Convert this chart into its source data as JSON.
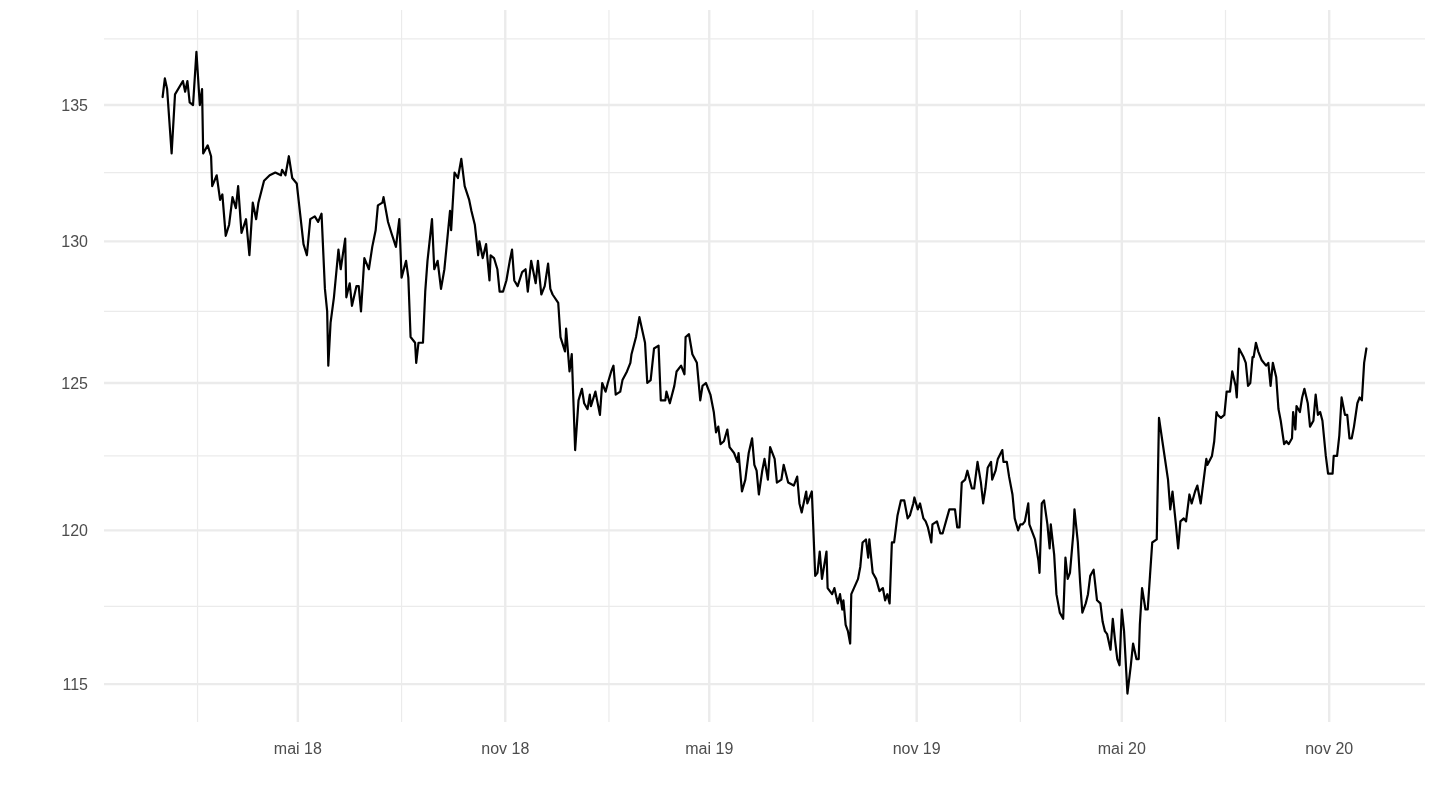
{
  "chart_data": {
    "type": "line",
    "log": true,
    "grid": true,
    "xlim": [
      "2017-11-10",
      "2021-01-25"
    ],
    "ylim": [
      113.8,
      138.6
    ],
    "xticks": [
      {
        "value": "2018-02-01",
        "label": null
      },
      {
        "value": "2018-05-01",
        "label": "mai 18"
      },
      {
        "value": "2018-08-01",
        "label": null
      },
      {
        "value": "2018-11-01",
        "label": "nov 18"
      },
      {
        "value": "2019-02-01",
        "label": null
      },
      {
        "value": "2019-05-01",
        "label": "mai 19"
      },
      {
        "value": "2019-08-01",
        "label": null
      },
      {
        "value": "2019-11-01",
        "label": "nov 19"
      },
      {
        "value": "2020-02-01",
        "label": null
      },
      {
        "value": "2020-05-01",
        "label": "mai 20"
      },
      {
        "value": "2020-08-01",
        "label": null
      },
      {
        "value": "2020-11-01",
        "label": "nov 20"
      }
    ],
    "yticks": [
      115,
      {
        "value": 117.5,
        "label": null
      },
      120,
      {
        "value": 122.5,
        "label": null
      },
      125,
      {
        "value": 127.5,
        "label": null
      },
      130,
      {
        "value": 132.5,
        "label": null
      },
      135,
      {
        "value": 137.5,
        "label": null
      }
    ],
    "series": [
      {
        "color": "#000000",
        "x": [
          "2018-01-01",
          "2018-01-03",
          "2018-01-05",
          "2018-01-09",
          "2018-01-12",
          "2018-01-19",
          "2018-01-21",
          "2018-01-23",
          "2018-01-25",
          "2018-01-28",
          "2018-01-31",
          "2018-02-03",
          "2018-02-05",
          "2018-02-06",
          "2018-02-10",
          "2018-02-13",
          "2018-02-14",
          "2018-02-18",
          "2018-02-21",
          "2018-02-23",
          "2018-02-26",
          "2018-03-01",
          "2018-03-04",
          "2018-03-07",
          "2018-03-09",
          "2018-03-12",
          "2018-03-16",
          "2018-03-19",
          "2018-03-22",
          "2018-03-25",
          "2018-03-27",
          "2018-04-01",
          "2018-04-06",
          "2018-04-11",
          "2018-04-16",
          "2018-04-17",
          "2018-04-20",
          "2018-04-23",
          "2018-04-26",
          "2018-04-30",
          "2018-05-03",
          "2018-05-06",
          "2018-05-09",
          "2018-05-12",
          "2018-05-16",
          "2018-05-19",
          "2018-05-22",
          "2018-05-25",
          "2018-05-27",
          "2018-05-28",
          "2018-05-30",
          "2018-06-02",
          "2018-06-06",
          "2018-06-08",
          "2018-06-12",
          "2018-06-13",
          "2018-06-16",
          "2018-06-18",
          "2018-06-22",
          "2018-06-24",
          "2018-06-26",
          "2018-06-29",
          "2018-07-03",
          "2018-07-06",
          "2018-07-09",
          "2018-07-11",
          "2018-07-15",
          "2018-07-16",
          "2018-07-20",
          "2018-07-23",
          "2018-07-27",
          "2018-07-30",
          "2018-08-01",
          "2018-08-05",
          "2018-08-07",
          "2018-08-09",
          "2018-08-13",
          "2018-08-14",
          "2018-08-16",
          "2018-08-20",
          "2018-08-22",
          "2018-08-24",
          "2018-08-28",
          "2018-08-30",
          "2018-09-02",
          "2018-09-05",
          "2018-09-08",
          "2018-09-13",
          "2018-09-14",
          "2018-09-17",
          "2018-09-20",
          "2018-09-23",
          "2018-09-26",
          "2018-09-30",
          "2018-10-02",
          "2018-10-05",
          "2018-10-08",
          "2018-10-09",
          "2018-10-12",
          "2018-10-15",
          "2018-10-18",
          "2018-10-19",
          "2018-10-22",
          "2018-10-25",
          "2018-10-27",
          "2018-10-30",
          "2018-11-02",
          "2018-11-05",
          "2018-11-07",
          "2018-11-09",
          "2018-11-12",
          "2018-11-16",
          "2018-11-19",
          "2018-11-21",
          "2018-11-24",
          "2018-11-28",
          "2018-11-30",
          "2018-12-03",
          "2018-12-06",
          "2018-12-09",
          "2018-12-11",
          "2018-12-13",
          "2018-12-18",
          "2018-12-20",
          "2018-12-24",
          "2018-12-25",
          "2018-12-27",
          "2018-12-28",
          "2018-12-30",
          "2019-01-02",
          "2019-01-05",
          "2019-01-08",
          "2019-01-10",
          "2019-01-13",
          "2019-01-15",
          "2019-01-16",
          "2019-01-20",
          "2019-01-24",
          "2019-01-26",
          "2019-01-29",
          "2019-01-31",
          "2019-02-03",
          "2019-02-05",
          "2019-02-07",
          "2019-02-11",
          "2019-02-13",
          "2019-02-17",
          "2019-02-20",
          "2019-02-21",
          "2019-02-25",
          "2019-02-28",
          "2019-03-05",
          "2019-03-07",
          "2019-03-10",
          "2019-03-13",
          "2019-03-17",
          "2019-03-19",
          "2019-03-23",
          "2019-03-24",
          "2019-03-27",
          "2019-03-31",
          "2019-04-02",
          "2019-04-06",
          "2019-04-09",
          "2019-04-10",
          "2019-04-13",
          "2019-04-16",
          "2019-04-20",
          "2019-04-23",
          "2019-04-25",
          "2019-04-28",
          "2019-05-02",
          "2019-05-05",
          "2019-05-07",
          "2019-05-09",
          "2019-05-11",
          "2019-05-14",
          "2019-05-17",
          "2019-05-19",
          "2019-05-23",
          "2019-05-26",
          "2019-05-27",
          "2019-05-30",
          "2019-06-02",
          "2019-06-05",
          "2019-06-08",
          "2019-06-10",
          "2019-06-12",
          "2019-06-14",
          "2019-06-17",
          "2019-06-19",
          "2019-06-22",
          "2019-06-24",
          "2019-06-28",
          "2019-06-30",
          "2019-07-04",
          "2019-07-06",
          "2019-07-10",
          "2019-07-15",
          "2019-07-18",
          "2019-07-20",
          "2019-07-22",
          "2019-07-26",
          "2019-07-27",
          "2019-07-31",
          "2019-08-03",
          "2019-08-05",
          "2019-08-07",
          "2019-08-09",
          "2019-08-13",
          "2019-08-14",
          "2019-08-18",
          "2019-08-20",
          "2019-08-23",
          "2019-08-25",
          "2019-08-27",
          "2019-08-28",
          "2019-08-30",
          "2019-09-01",
          "2019-09-03",
          "2019-09-04",
          "2019-09-10",
          "2019-09-12",
          "2019-09-14",
          "2019-09-17",
          "2019-09-19",
          "2019-09-20",
          "2019-09-23",
          "2019-09-26",
          "2019-09-29",
          "2019-10-02",
          "2019-10-04",
          "2019-10-06",
          "2019-10-08",
          "2019-10-10",
          "2019-10-12",
          "2019-10-15",
          "2019-10-18",
          "2019-10-21",
          "2019-10-24",
          "2019-10-26",
          "2019-10-29",
          "2019-10-30",
          "2019-11-02",
          "2019-11-04",
          "2019-11-07",
          "2019-11-09",
          "2019-11-11",
          "2019-11-14",
          "2019-11-15",
          "2019-11-19",
          "2019-11-22",
          "2019-11-24",
          "2019-11-27",
          "2019-11-30",
          "2019-12-05",
          "2019-12-07",
          "2019-12-09",
          "2019-12-11",
          "2019-12-14",
          "2019-12-16",
          "2019-12-20",
          "2019-12-22",
          "2019-12-25",
          "2019-12-28",
          "2019-12-30",
          "2020-01-01",
          "2020-01-03",
          "2020-01-06",
          "2020-01-07",
          "2020-01-10",
          "2020-01-12",
          "2020-01-16",
          "2020-01-17",
          "2020-01-20",
          "2020-01-22",
          "2020-01-25",
          "2020-01-27",
          "2020-01-30",
          "2020-02-01",
          "2020-02-03",
          "2020-02-05",
          "2020-02-08",
          "2020-02-09",
          "2020-02-12",
          "2020-02-14",
          "2020-02-17",
          "2020-02-18",
          "2020-02-20",
          "2020-02-22",
          "2020-02-25",
          "2020-02-27",
          "2020-02-28",
          "2020-03-02",
          "2020-03-04",
          "2020-03-07",
          "2020-03-10",
          "2020-03-12",
          "2020-03-14",
          "2020-03-16",
          "2020-03-19",
          "2020-03-20",
          "2020-03-23",
          "2020-03-25",
          "2020-03-27",
          "2020-03-30",
          "2020-04-01",
          "2020-04-03",
          "2020-04-06",
          "2020-04-09",
          "2020-04-12",
          "2020-04-14",
          "2020-04-16",
          "2020-04-18",
          "2020-04-21",
          "2020-04-23",
          "2020-04-25",
          "2020-04-27",
          "2020-04-29",
          "2020-05-01",
          "2020-05-03",
          "2020-05-06",
          "2020-05-09",
          "2020-05-11",
          "2020-05-14",
          "2020-05-16",
          "2020-05-17",
          "2020-05-19",
          "2020-05-22",
          "2020-05-24",
          "2020-05-26",
          "2020-05-28",
          "2020-06-01",
          "2020-06-03",
          "2020-06-06",
          "2020-06-11",
          "2020-06-13",
          "2020-06-15",
          "2020-06-18",
          "2020-06-20",
          "2020-06-22",
          "2020-06-25",
          "2020-06-27",
          "2020-06-30",
          "2020-07-02",
          "2020-07-05",
          "2020-07-07",
          "2020-07-10",
          "2020-07-15",
          "2020-07-16",
          "2020-07-20",
          "2020-07-22",
          "2020-07-24",
          "2020-07-25",
          "2020-07-28",
          "2020-07-31",
          "2020-08-02",
          "2020-08-05",
          "2020-08-07",
          "2020-08-10",
          "2020-08-11",
          "2020-08-13",
          "2020-08-17",
          "2020-08-19",
          "2020-08-21",
          "2020-08-23",
          "2020-08-25",
          "2020-08-26",
          "2020-08-28",
          "2020-08-30",
          "2020-09-02",
          "2020-09-06",
          "2020-09-08",
          "2020-09-10",
          "2020-09-12",
          "2020-09-15",
          "2020-09-17",
          "2020-09-19",
          "2020-09-22",
          "2020-09-24",
          "2020-09-26",
          "2020-09-29",
          "2020-09-30",
          "2020-10-02",
          "2020-10-03",
          "2020-10-06",
          "2020-10-08",
          "2020-10-10",
          "2020-10-13",
          "2020-10-15",
          "2020-10-18",
          "2020-10-20",
          "2020-10-22",
          "2020-10-24",
          "2020-10-26",
          "2020-10-29",
          "2020-10-31",
          "2020-11-04",
          "2020-11-05",
          "2020-11-08",
          "2020-11-10",
          "2020-11-12",
          "2020-11-15",
          "2020-11-17",
          "2020-11-19",
          "2020-11-21",
          "2020-11-23",
          "2020-11-26",
          "2020-11-28",
          "2020-11-30",
          "2020-12-02",
          "2020-12-04"
        ],
        "values": [
          135.3,
          136.0,
          135.6,
          133.2,
          135.4,
          135.9,
          135.5,
          135.9,
          135.1,
          135.0,
          137.0,
          135.0,
          135.6,
          133.2,
          133.5,
          133.1,
          132.0,
          132.4,
          131.5,
          131.7,
          130.2,
          130.6,
          131.6,
          131.2,
          132.0,
          130.3,
          130.8,
          129.5,
          131.4,
          130.8,
          131.4,
          132.2,
          132.4,
          132.5,
          132.4,
          132.6,
          132.4,
          133.1,
          132.3,
          132.1,
          131.0,
          129.9,
          129.5,
          130.8,
          130.9,
          130.7,
          131.0,
          128.3,
          127.5,
          125.6,
          127.1,
          128.0,
          129.7,
          129.0,
          130.1,
          128.0,
          128.5,
          127.7,
          128.4,
          128.4,
          127.5,
          129.4,
          129.0,
          129.8,
          130.4,
          131.3,
          131.4,
          131.6,
          130.7,
          130.3,
          129.8,
          130.8,
          128.7,
          129.3,
          128.7,
          126.6,
          126.4,
          125.7,
          126.4,
          126.4,
          128.2,
          129.3,
          130.8,
          129.0,
          129.3,
          128.3,
          129.0,
          131.1,
          130.4,
          132.5,
          132.3,
          133.0,
          132.0,
          131.5,
          131.1,
          130.6,
          129.5,
          130.0,
          129.4,
          129.9,
          128.6,
          129.5,
          129.4,
          129.0,
          128.2,
          128.2,
          128.6,
          129.3,
          129.7,
          128.6,
          128.4,
          128.9,
          129.0,
          128.2,
          129.3,
          128.5,
          129.3,
          128.1,
          128.4,
          129.2,
          128.3,
          128.1,
          127.8,
          126.6,
          126.1,
          126.9,
          125.9,
          125.4,
          126.0,
          122.7,
          124.4,
          124.8,
          124.3,
          124.1,
          124.6,
          124.2,
          124.7,
          123.9,
          125.0,
          124.7,
          125.0,
          125.4,
          125.6,
          124.6,
          124.7,
          125.1,
          125.4,
          125.7,
          126.0,
          126.6,
          127.3,
          126.4,
          125.0,
          125.1,
          126.2,
          126.3,
          124.4,
          124.4,
          124.7,
          124.3,
          124.9,
          125.4,
          125.6,
          125.3,
          126.6,
          126.7,
          126.0,
          125.7,
          124.4,
          124.9,
          125.0,
          124.6,
          124.0,
          123.3,
          123.5,
          122.9,
          123.0,
          123.4,
          122.8,
          122.6,
          122.3,
          122.6,
          121.3,
          121.7,
          122.6,
          123.1,
          122.2,
          122.0,
          121.2,
          122.0,
          122.4,
          121.7,
          122.8,
          122.4,
          121.6,
          121.7,
          122.2,
          121.6,
          121.5,
          121.8,
          120.9,
          120.6,
          121.3,
          120.9,
          121.3,
          118.5,
          118.6,
          119.3,
          118.4,
          119.3,
          118.1,
          117.9,
          118.1,
          117.6,
          117.9,
          117.4,
          117.7,
          116.9,
          116.7,
          116.3,
          117.9,
          118.4,
          118.8,
          119.6,
          119.7,
          119.1,
          119.7,
          118.6,
          118.4,
          118.0,
          118.1,
          117.7,
          117.9,
          117.6,
          119.6,
          119.6,
          120.5,
          121.0,
          121.0,
          120.4,
          120.5,
          120.9,
          121.1,
          120.7,
          120.9,
          120.4,
          120.3,
          120.1,
          119.6,
          120.2,
          120.3,
          119.9,
          119.9,
          120.3,
          120.7,
          120.7,
          120.1,
          120.1,
          121.6,
          121.7,
          122.0,
          121.4,
          121.4,
          122.3,
          121.6,
          120.9,
          121.4,
          122.1,
          122.3,
          121.7,
          122.0,
          122.4,
          122.7,
          122.3,
          122.3,
          121.8,
          121.2,
          120.4,
          120.0,
          120.2,
          120.2,
          120.3,
          120.9,
          120.2,
          119.9,
          119.7,
          119.0,
          118.6,
          120.9,
          121.0,
          120.2,
          119.4,
          120.2,
          119.2,
          117.9,
          117.3,
          117.1,
          119.1,
          118.4,
          118.6,
          119.9,
          120.7,
          119.6,
          118.3,
          117.3,
          117.6,
          117.9,
          118.5,
          118.7,
          117.7,
          117.6,
          117.0,
          116.7,
          116.6,
          116.1,
          117.1,
          116.4,
          115.8,
          115.6,
          117.4,
          116.7,
          114.7,
          115.6,
          116.3,
          115.8,
          115.8,
          116.9,
          118.1,
          117.4,
          117.4,
          118.5,
          119.6,
          119.7,
          123.8,
          123.0,
          121.7,
          120.7,
          121.3,
          120.2,
          119.4,
          120.3,
          120.4,
          120.3,
          121.2,
          120.9,
          121.3,
          121.5,
          120.9,
          122.4,
          122.2,
          122.5,
          123.0,
          124.0,
          123.9,
          123.8,
          123.9,
          124.7,
          124.7,
          125.4,
          124.9,
          124.5,
          126.2,
          125.9,
          125.7,
          124.9,
          125.0,
          125.9,
          125.9,
          126.4,
          126.1,
          125.8,
          125.6,
          125.7,
          124.9,
          125.7,
          125.2,
          124.1,
          123.7,
          122.9,
          123.0,
          122.9,
          123.1,
          124.0,
          123.4,
          124.2,
          124.0,
          124.5,
          124.8,
          124.3,
          123.5,
          123.7,
          124.6,
          123.9,
          124.0,
          123.7,
          122.5,
          121.9,
          121.9,
          122.5,
          122.5,
          123.2,
          124.5,
          123.9,
          123.9,
          123.1,
          123.1,
          123.5,
          124.3,
          124.5,
          124.4,
          125.7,
          126.2
        ]
      }
    ]
  }
}
